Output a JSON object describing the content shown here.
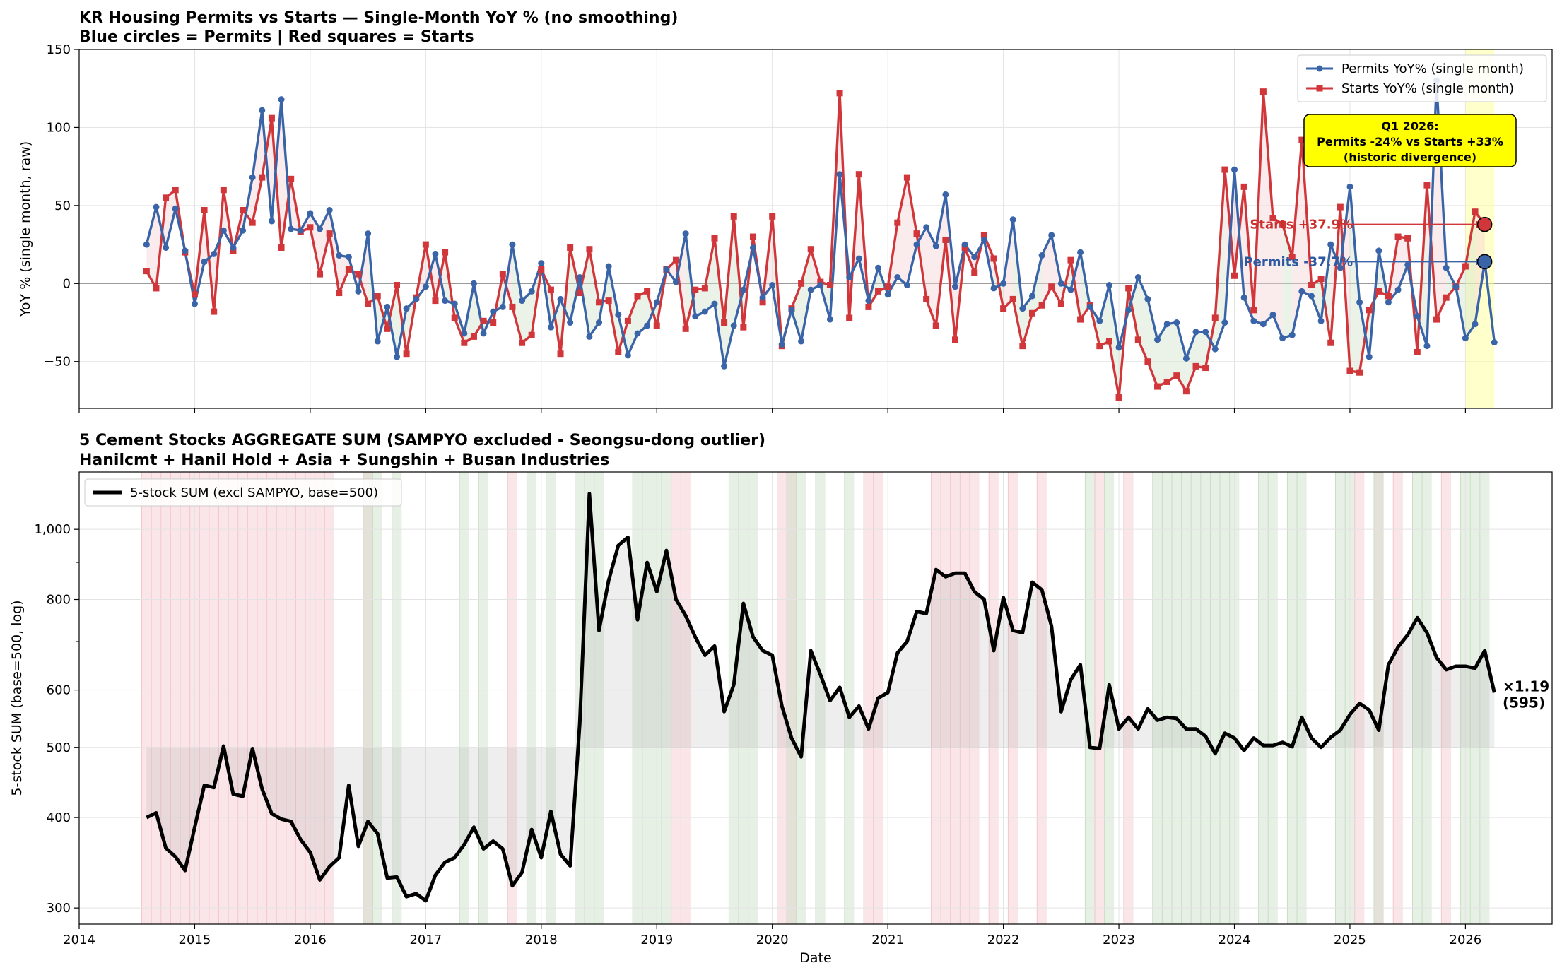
{
  "chart_data": [
    {
      "type": "line",
      "title": "KR Housing Permits vs Starts — Single-Month YoY % (no smoothing)",
      "subtitle": "Blue circles = Permits | Red squares = Starts",
      "xlabel": "",
      "ylabel": "YoY % (single month, raw)",
      "x_start": "2014-08",
      "x_step": "1 month",
      "xlim": [
        "2014-01-01",
        "2026-10-01"
      ],
      "ylim": [
        -80,
        150
      ],
      "y_ticks": [
        -50,
        0,
        50,
        100,
        150
      ],
      "y_tick_labels": [
        "−50",
        "0",
        "50",
        "100",
        "150"
      ],
      "x_ticks": [
        2014,
        2015,
        2016,
        2017,
        2018,
        2019,
        2020,
        2021,
        2022,
        2023,
        2024,
        2025,
        2026
      ],
      "grid": true,
      "legend_position": "top-right",
      "colors": {
        "permits": "#3a64a8",
        "starts": "#d0363a",
        "highlight": "#ffff99",
        "note_bg": "#ffff00"
      },
      "series": [
        {
          "name": "Permits YoY% (single month)",
          "marker": "circle",
          "values": [
            25,
            49,
            23,
            48,
            21,
            -13,
            14,
            19,
            34,
            23,
            34,
            68,
            111,
            40,
            118,
            35,
            34,
            45,
            35,
            47,
            18,
            17,
            -5,
            32,
            -37,
            -15,
            -47,
            -16,
            -10,
            -2,
            19,
            -11,
            -13,
            -32,
            0,
            -32,
            -18,
            -15,
            25,
            -11,
            -5,
            13,
            -28,
            -10,
            -25,
            4,
            -34,
            -25,
            11,
            -20,
            -46,
            -32,
            -27,
            -12,
            9,
            1,
            32,
            -21,
            -18,
            -13,
            -53,
            -27,
            -4,
            23,
            -9,
            -1,
            -39,
            -17,
            -37,
            -4,
            -1,
            -23,
            70,
            4,
            16,
            -11,
            10,
            -7,
            4,
            -1,
            25,
            36,
            24,
            57,
            -2,
            25,
            17,
            28,
            -3,
            0,
            41,
            -16,
            -8,
            18,
            31,
            0,
            -4,
            20,
            -15,
            -24,
            -1,
            -41,
            -17,
            4,
            -10,
            -36,
            -26,
            -25,
            -48,
            -31,
            -31,
            -42,
            -25,
            73,
            -9,
            -24,
            -26,
            -20,
            -35,
            -33,
            -5,
            -8,
            -24,
            25,
            10,
            62,
            -12,
            -47,
            21,
            -12,
            -4,
            12,
            -21,
            -40,
            130,
            10,
            -2,
            -35,
            -26,
            14,
            -37.7
          ]
        },
        {
          "name": "Starts YoY% (single month)",
          "marker": "square",
          "values": [
            8,
            -3,
            55,
            60,
            20,
            -7,
            47,
            -18,
            60,
            21,
            47,
            39,
            68,
            106,
            23,
            67,
            33,
            36,
            6,
            32,
            -6,
            9,
            6,
            -13,
            -8,
            -29,
            -1,
            -45,
            -9,
            25,
            -11,
            20,
            -22,
            -38,
            -34,
            -24,
            -25,
            6,
            -15,
            -38,
            -33,
            9,
            -4,
            -45,
            23,
            -6,
            22,
            -12,
            -11,
            -44,
            -24,
            -8,
            -5,
            -27,
            9,
            15,
            -29,
            -4,
            -3,
            29,
            -25,
            43,
            -28,
            30,
            -12,
            43,
            -40,
            -16,
            0,
            22,
            1,
            -1,
            122,
            -22,
            70,
            -15,
            -5,
            -2,
            39,
            68,
            32,
            -10,
            -27,
            28,
            -36,
            23,
            7,
            31,
            16,
            -16,
            -10,
            -40,
            -19,
            -14,
            -2,
            -13,
            15,
            -23,
            -14,
            -40,
            -37,
            -73,
            -3,
            -36,
            -50,
            -66,
            -63,
            -59,
            -69,
            -53,
            -54,
            -22,
            73,
            5,
            62,
            -17,
            123,
            42,
            38,
            17,
            92,
            -1,
            3,
            -38,
            49,
            -56,
            -57,
            -17,
            -5,
            -8,
            30,
            29,
            -44,
            63,
            -23,
            -9,
            -2,
            11,
            46,
            37.9
          ]
        }
      ],
      "annotations": {
        "starts_end": "Starts +37.9%",
        "permits_end": "Permits -37.7%",
        "note": [
          "Q1 2026:",
          "Permits -24% vs Starts +33%",
          "(historic divergence)"
        ]
      }
    },
    {
      "type": "line",
      "title": "5 Cement Stocks AGGREGATE SUM (SAMPYO excluded - Seongsu-dong outlier)",
      "subtitle": "Hanilcmt + Hanil Hold + Asia + Sungshin + Busan Industries",
      "xlabel": "Date",
      "ylabel": "5-stock SUM (base=500, log)",
      "y_scale": "log",
      "x_start": "2014-08",
      "x_step": "1 month",
      "xlim": [
        "2014-01-01",
        "2026-10-01"
      ],
      "ylim": [
        285,
        1200
      ],
      "y_ticks": [
        300,
        400,
        500,
        600,
        800,
        1000
      ],
      "y_tick_labels": [
        "300",
        "400",
        "500",
        "600",
        "800",
        "1,000"
      ],
      "x_ticks": [
        2014,
        2015,
        2016,
        2017,
        2018,
        2019,
        2020,
        2021,
        2022,
        2023,
        2024,
        2025,
        2026
      ],
      "x_tick_labels": [
        "2014",
        "2015",
        "2016",
        "2017",
        "2018",
        "2019",
        "2020",
        "2021",
        "2022",
        "2023",
        "2024",
        "2025",
        "2026"
      ],
      "baseline": 500,
      "grid": true,
      "legend_position": "top-left",
      "colors": {
        "line": "#000000",
        "red_band": "#f4c7cc",
        "green_band": "#c9dec5"
      },
      "series": [
        {
          "name": "5-stock SUM (excl SAMPYO, base=500)",
          "values": [
            400,
            406,
            363,
            353,
            338,
            388,
            443,
            440,
            502,
            431,
            428,
            498,
            438,
            405,
            398,
            395,
            373,
            358,
            328,
            342,
            352,
            443,
            365,
            395,
            380,
            330,
            331,
            311,
            314,
            307,
            333,
            347,
            352,
            367,
            388,
            362,
            371,
            362,
            322,
            336,
            385,
            352,
            408,
            356,
            343,
            540,
            1120,
            725,
            850,
            950,
            975,
            750,
            900,
            820,
            935,
            800,
            760,
            710,
            670,
            690,
            560,
            610,
            790,
            710,
            680,
            670,
            570,
            515,
            485,
            680,
            630,
            580,
            605,
            550,
            570,
            530,
            585,
            595,
            675,
            700,
            770,
            765,
            880,
            860,
            870,
            870,
            820,
            800,
            680,
            805,
            725,
            720,
            845,
            825,
            735,
            560,
            620,
            650,
            500,
            498,
            610,
            530,
            550,
            530,
            565,
            545,
            550,
            548,
            530,
            530,
            518,
            490,
            523,
            515,
            495,
            515,
            503,
            503,
            508,
            501,
            550,
            515,
            500,
            516,
            528,
            555,
            575,
            563,
            528,
            650,
            688,
            715,
            755,
            720,
            665,
            640,
            647,
            647,
            643,
            680,
            595
          ]
        }
      ],
      "bands": {
        "red_month_ranges": [
          [
            0,
            19
          ],
          [
            23,
            23
          ],
          [
            38,
            38
          ],
          [
            55,
            56
          ],
          [
            66,
            67
          ],
          [
            75,
            76
          ],
          [
            82,
            86
          ],
          [
            88,
            88
          ],
          [
            90,
            90
          ],
          [
            93,
            93
          ],
          [
            99,
            99
          ],
          [
            102,
            102
          ],
          [
            126,
            126
          ],
          [
            128,
            128
          ],
          [
            130,
            130
          ],
          [
            135,
            135
          ]
        ],
        "green_month_ranges": [
          [
            23,
            24
          ],
          [
            26,
            26
          ],
          [
            33,
            33
          ],
          [
            35,
            35
          ],
          [
            40,
            40
          ],
          [
            42,
            42
          ],
          [
            45,
            47
          ],
          [
            51,
            54
          ],
          [
            61,
            63
          ],
          [
            67,
            68
          ],
          [
            70,
            70
          ],
          [
            73,
            73
          ],
          [
            98,
            98
          ],
          [
            100,
            100
          ],
          [
            105,
            113
          ],
          [
            116,
            117
          ],
          [
            119,
            120
          ],
          [
            124,
            125
          ],
          [
            128,
            128
          ],
          [
            132,
            133
          ],
          [
            137,
            139
          ]
        ]
      },
      "annotations": {
        "end_ratio": "×1.19",
        "end_value": "(595)"
      }
    }
  ]
}
